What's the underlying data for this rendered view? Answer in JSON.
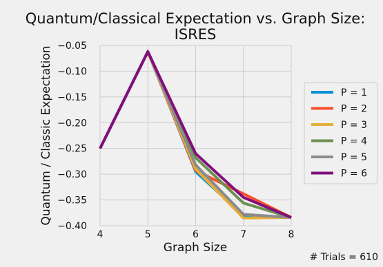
{
  "chart_data": {
    "type": "line",
    "title_lines": [
      "Quantum/Classical Expectation vs. Graph Size:",
      "ISRES"
    ],
    "xlabel": "Graph Size",
    "ylabel": "Quantum / Classic Expectation",
    "x": [
      4,
      5,
      6,
      7,
      8
    ],
    "x_ticks": [
      "4",
      "5",
      "6",
      "7",
      "8"
    ],
    "xlim": [
      4,
      8
    ],
    "y_ticks": [
      "−0.05",
      "−0.10",
      "−0.15",
      "−0.20",
      "−0.25",
      "−0.30",
      "−0.35",
      "−0.40"
    ],
    "y_tick_values": [
      -0.05,
      -0.1,
      -0.15,
      -0.2,
      -0.25,
      -0.3,
      -0.35,
      -0.4
    ],
    "ylim": [
      -0.4,
      -0.05
    ],
    "grid": true,
    "legend_position": "right",
    "series": [
      {
        "name": "P = 1",
        "color": "#008fd5",
        "values": [
          -0.25,
          -0.062,
          -0.295,
          -0.38,
          -0.384
        ]
      },
      {
        "name": "P = 2",
        "color": "#fc4f30",
        "values": [
          -0.25,
          -0.062,
          -0.293,
          -0.338,
          -0.384
        ]
      },
      {
        "name": "P = 3",
        "color": "#e5ae38",
        "values": [
          -0.25,
          -0.062,
          -0.29,
          -0.385,
          -0.384
        ]
      },
      {
        "name": "P = 4",
        "color": "#6d904f",
        "values": [
          -0.25,
          -0.062,
          -0.268,
          -0.356,
          -0.384
        ]
      },
      {
        "name": "P = 5",
        "color": "#8b8b8b",
        "values": [
          -0.25,
          -0.062,
          -0.282,
          -0.378,
          -0.384
        ]
      },
      {
        "name": "P = 6",
        "color": "#810f7c",
        "values": [
          -0.25,
          -0.062,
          -0.26,
          -0.345,
          -0.384
        ]
      }
    ],
    "footnote": "# Trials = 610"
  }
}
